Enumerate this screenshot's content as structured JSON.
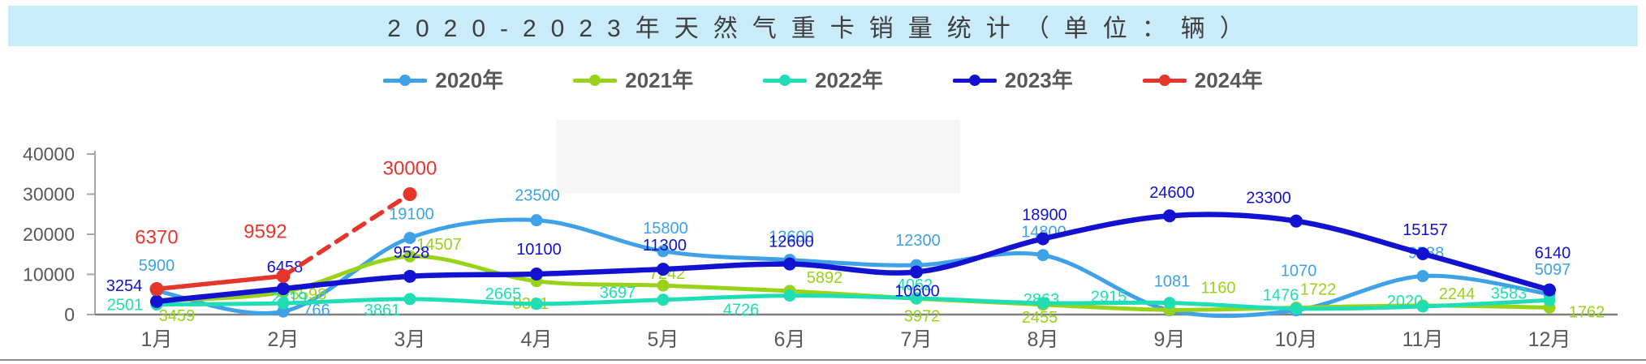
{
  "header": {
    "title": "2020-2023年天然气重卡销量统计（单位：辆）"
  },
  "chart_data": {
    "type": "line",
    "title": "2020-2023年天然气重卡销量统计",
    "unit_note": "单位：辆",
    "legend_position": "top",
    "grid": "off",
    "categories": [
      "1月",
      "2月",
      "3月",
      "4月",
      "5月",
      "6月",
      "7月",
      "8月",
      "9月",
      "10月",
      "11月",
      "12月"
    ],
    "y_axis": {
      "min": 0,
      "max": 40000,
      "step": 10000,
      "tick_labels": [
        "0",
        "10000",
        "20000",
        "30000",
        "40000"
      ]
    },
    "series": [
      {
        "name": "2020年",
        "color": "#3FA2E8",
        "line_width": 5,
        "dot_radius": 7.5,
        "label_size": 20,
        "smooth": true,
        "values": [
          5900,
          766,
          19100,
          23500,
          15800,
          13600,
          12300,
          14800,
          1081,
          1070,
          9588,
          5097
        ],
        "label_offsets": [
          [
            0,
            -25
          ],
          [
            41,
            5
          ],
          [
            2,
            -23
          ],
          [
            1,
            -24
          ],
          [
            3,
            -22
          ],
          [
            2,
            -22
          ],
          [
            2,
            -24
          ],
          [
            1,
            -22
          ],
          [
            3,
            -29
          ],
          [
            3,
            -42
          ],
          [
            4,
            -22
          ],
          [
            4,
            -24
          ]
        ]
      },
      {
        "name": "2021年",
        "color": "#98D319",
        "line_width": 5,
        "dot_radius": 7.5,
        "label_size": 20,
        "smooth": true,
        "values": [
          3459,
          5598,
          14507,
          8321,
          7242,
          5892,
          3972,
          2455,
          1160,
          1722,
          2244,
          1762
        ],
        "label_offsets": [
          [
            25,
            25
          ],
          [
            31,
            9
          ],
          [
            36,
            -8
          ],
          [
            -7,
            34
          ],
          [
            5,
            -8
          ],
          [
            43,
            -10
          ],
          [
            7,
            28
          ],
          [
            -4,
            22
          ],
          [
            60,
            -21
          ],
          [
            27,
            -16
          ],
          [
            42,
            -8
          ],
          [
            46,
            12
          ]
        ]
      },
      {
        "name": "2022年",
        "color": "#1FDDB4",
        "line_width": 5,
        "dot_radius": 7.5,
        "label_size": 20,
        "smooth": true,
        "values": [
          2501,
          2819,
          3861,
          2665,
          3697,
          4726,
          4062,
          2863,
          2915,
          1476,
          2020,
          3583
        ],
        "label_offsets": [
          [
            -39,
            7
          ],
          [
            7,
            0
          ],
          [
            -34,
            20
          ],
          [
            -41,
            -6
          ],
          [
            -56,
            -2
          ],
          [
            -60,
            24
          ],
          [
            -2,
            -10
          ],
          [
            -2,
            2
          ],
          [
            -75,
            -1
          ],
          [
            -19,
            -10
          ],
          [
            -22,
            0
          ],
          [
            -50,
            -2
          ]
        ]
      },
      {
        "name": "2023年",
        "color": "#1212D0",
        "line_width": 6.5,
        "dot_radius": 8,
        "label_size": 20,
        "smooth": true,
        "values": [
          3254,
          6458,
          9528,
          10100,
          11300,
          12600,
          10600,
          18900,
          24600,
          23300,
          15157,
          6140
        ],
        "label_offsets": [
          [
            -40,
            -13
          ],
          [
            2,
            -20
          ],
          [
            2,
            -23
          ],
          [
            3,
            -24
          ],
          [
            2,
            -23
          ],
          [
            2,
            -21
          ],
          [
            1,
            30
          ],
          [
            2,
            -23
          ],
          [
            3,
            -22
          ],
          [
            -34,
            -22
          ],
          [
            3,
            -23
          ],
          [
            4,
            -39
          ]
        ]
      },
      {
        "name": "2024年",
        "color": "#E6352B",
        "line_width": 5.5,
        "dot_radius": 8.5,
        "label_size": 24,
        "smooth": false,
        "dashed_from": 1,
        "values": [
          6370,
          9592,
          30000,
          null,
          null,
          null,
          null,
          null,
          null,
          null,
          null,
          null
        ],
        "label_offsets": [
          [
            0,
            -56
          ],
          [
            -22,
            -47
          ],
          [
            0,
            -24
          ]
        ]
      }
    ]
  }
}
